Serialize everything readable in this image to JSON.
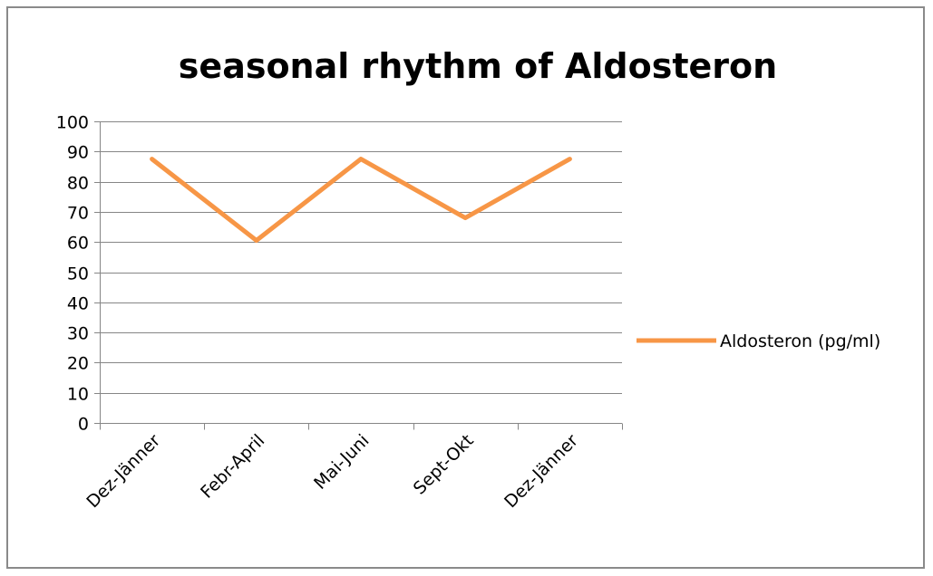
{
  "chart_data": {
    "type": "line",
    "title": "seasonal rhythm of Aldosteron",
    "categories": [
      "Dez-Jänner",
      "Febr-April",
      "Mai-Juni",
      "Sept-Okt",
      "Dez-Jänner"
    ],
    "series": [
      {
        "name": "Aldosteron (pg/ml)",
        "values": [
          87.5,
          60.5,
          87.5,
          68,
          87.5
        ],
        "color": "#f79646"
      }
    ],
    "ylim": [
      0,
      100
    ],
    "yticks": [
      0,
      10,
      20,
      30,
      40,
      50,
      60,
      70,
      80,
      90,
      100
    ],
    "grid": true,
    "legend_position": "right"
  }
}
